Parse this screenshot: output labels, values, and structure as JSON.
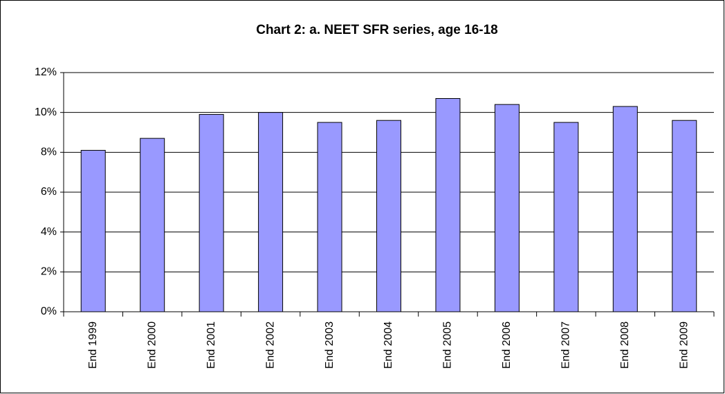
{
  "chart_data": {
    "type": "bar",
    "title": "Chart 2: a. NEET SFR series, age 16-18",
    "categories": [
      "End 1999",
      "End 2000",
      "End 2001",
      "End 2002",
      "End 2003",
      "End 2004",
      "End 2005",
      "End 2006",
      "End 2007",
      "End 2008",
      "End 2009"
    ],
    "values": [
      8.1,
      8.7,
      9.9,
      10.0,
      9.5,
      9.6,
      10.7,
      10.4,
      9.5,
      10.3,
      9.6
    ],
    "color": "#9999ff",
    "ylim": [
      0,
      12
    ],
    "yticks": [
      {
        "value": 0,
        "label": "0%"
      },
      {
        "value": 2,
        "label": "2%"
      },
      {
        "value": 4,
        "label": "4%"
      },
      {
        "value": 6,
        "label": "6%"
      },
      {
        "value": 8,
        "label": "8%"
      },
      {
        "value": 10,
        "label": "10%"
      },
      {
        "value": 12,
        "label": "12%"
      }
    ],
    "grid": true
  }
}
